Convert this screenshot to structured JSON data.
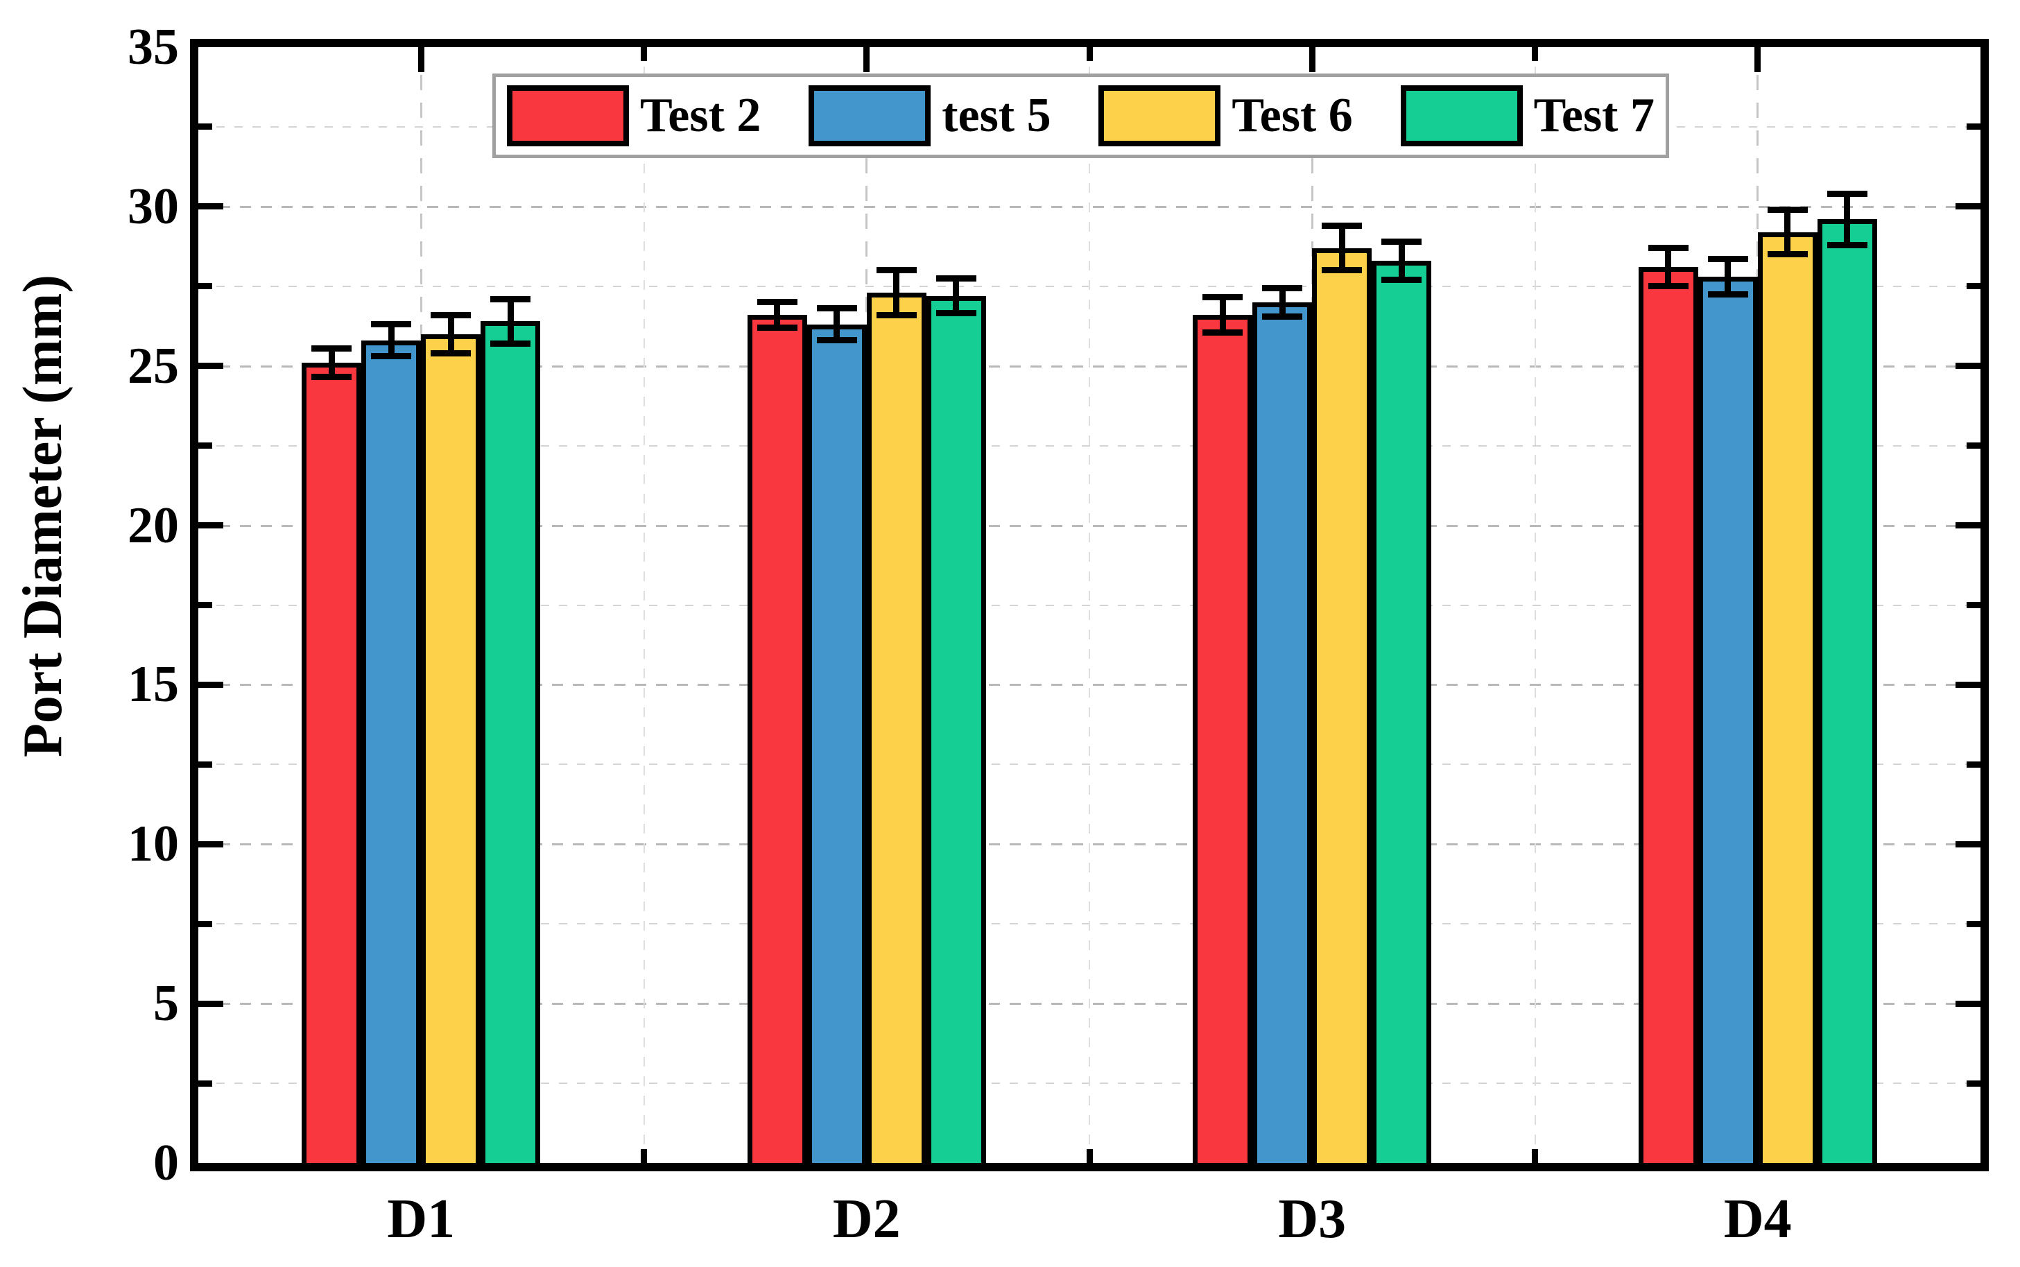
{
  "figure": {
    "background": "#ffffff"
  },
  "y_axis": {
    "title": "Port Diameter (mm)",
    "min": 0,
    "max": 35,
    "major_step": 5,
    "minor_step": 2.5,
    "tick_labels": [
      "0",
      "5",
      "10",
      "15",
      "20",
      "25",
      "30",
      "35"
    ]
  },
  "x_axis": {
    "categories": [
      "D1",
      "D2",
      "D3",
      "D4"
    ]
  },
  "legend": {
    "items": [
      {
        "label": "Test 2",
        "color": "#f8383e"
      },
      {
        "label": "test 5",
        "color": "#4396cc"
      },
      {
        "label": "Test 6",
        "color": "#fdd24a"
      },
      {
        "label": "Test 7",
        "color": "#14ce93"
      }
    ]
  },
  "chart_data": {
    "type": "bar",
    "title": "",
    "xlabel": "",
    "ylabel": "Port Diameter (mm)",
    "ylim": [
      0,
      35
    ],
    "grid": true,
    "legend_position": "top-center",
    "categories": [
      "D1",
      "D2",
      "D3",
      "D4"
    ],
    "series": [
      {
        "name": "Test 2",
        "color": "#f8383e",
        "values": [
          25.1,
          26.6,
          26.6,
          28.1
        ],
        "errors": [
          0.45,
          0.4,
          0.55,
          0.6
        ]
      },
      {
        "name": "test 5",
        "color": "#4396cc",
        "values": [
          25.8,
          26.3,
          27.0,
          27.8
        ],
        "errors": [
          0.5,
          0.5,
          0.45,
          0.55
        ]
      },
      {
        "name": "Test 6",
        "color": "#fdd24a",
        "values": [
          26.0,
          27.3,
          28.7,
          29.2
        ],
        "errors": [
          0.6,
          0.7,
          0.7,
          0.7
        ]
      },
      {
        "name": "Test 7",
        "color": "#14ce93",
        "values": [
          26.4,
          27.2,
          28.3,
          29.6
        ],
        "errors": [
          0.7,
          0.55,
          0.6,
          0.8
        ]
      }
    ]
  }
}
